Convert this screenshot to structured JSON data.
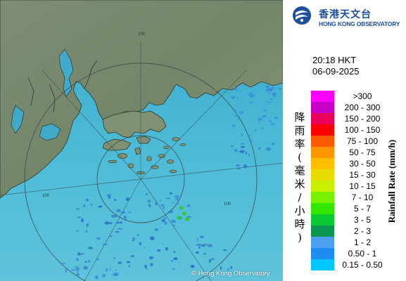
{
  "agency": {
    "name_zh": "香港天文台",
    "name_en": "HONG KONG OBSERVATORY",
    "brand_color": "#1d4f9a"
  },
  "observation": {
    "time": "20:18 HKT",
    "date": "06-09-2025"
  },
  "map": {
    "range_ring_labels": [
      "100",
      "100",
      "100"
    ],
    "copyright": "© Hong Kong Observatory",
    "sea_color": "#49b4d4",
    "land_color": "#7d8c70"
  },
  "legend": {
    "title_zh": [
      "降",
      "雨",
      "率",
      "(",
      "毫",
      "米",
      "/",
      "小",
      "時",
      ")"
    ],
    "title_en": "Rainfall Rate (mm/h)",
    "entries": [
      {
        "label": ">300",
        "color": "#ff00ff"
      },
      {
        "label": "200 - 300",
        "color": "#c800c8"
      },
      {
        "label": "150 - 200",
        "color": "#e8005a"
      },
      {
        "label": "100 - 150",
        "color": "#ff0000"
      },
      {
        "label": "75 - 100",
        "color": "#ff5a00"
      },
      {
        "label": "50 - 75",
        "color": "#ff9600"
      },
      {
        "label": "30 - 50",
        "color": "#ffbe00"
      },
      {
        "label": "15 - 30",
        "color": "#e6dc00"
      },
      {
        "label": "10 - 15",
        "color": "#c8f000"
      },
      {
        "label": "7 - 10",
        "color": "#78f000"
      },
      {
        "label": "5 - 7",
        "color": "#32e600"
      },
      {
        "label": "3 - 5",
        "color": "#0ac832"
      },
      {
        "label": "2 - 3",
        "color": "#0a9650"
      },
      {
        "label": "1 - 2",
        "color": "#4da0f0"
      },
      {
        "label": "0.50 - 1",
        "color": "#1e8cf0"
      },
      {
        "label": "0.15 - 0.50",
        "color": "#00c8ff"
      }
    ]
  }
}
